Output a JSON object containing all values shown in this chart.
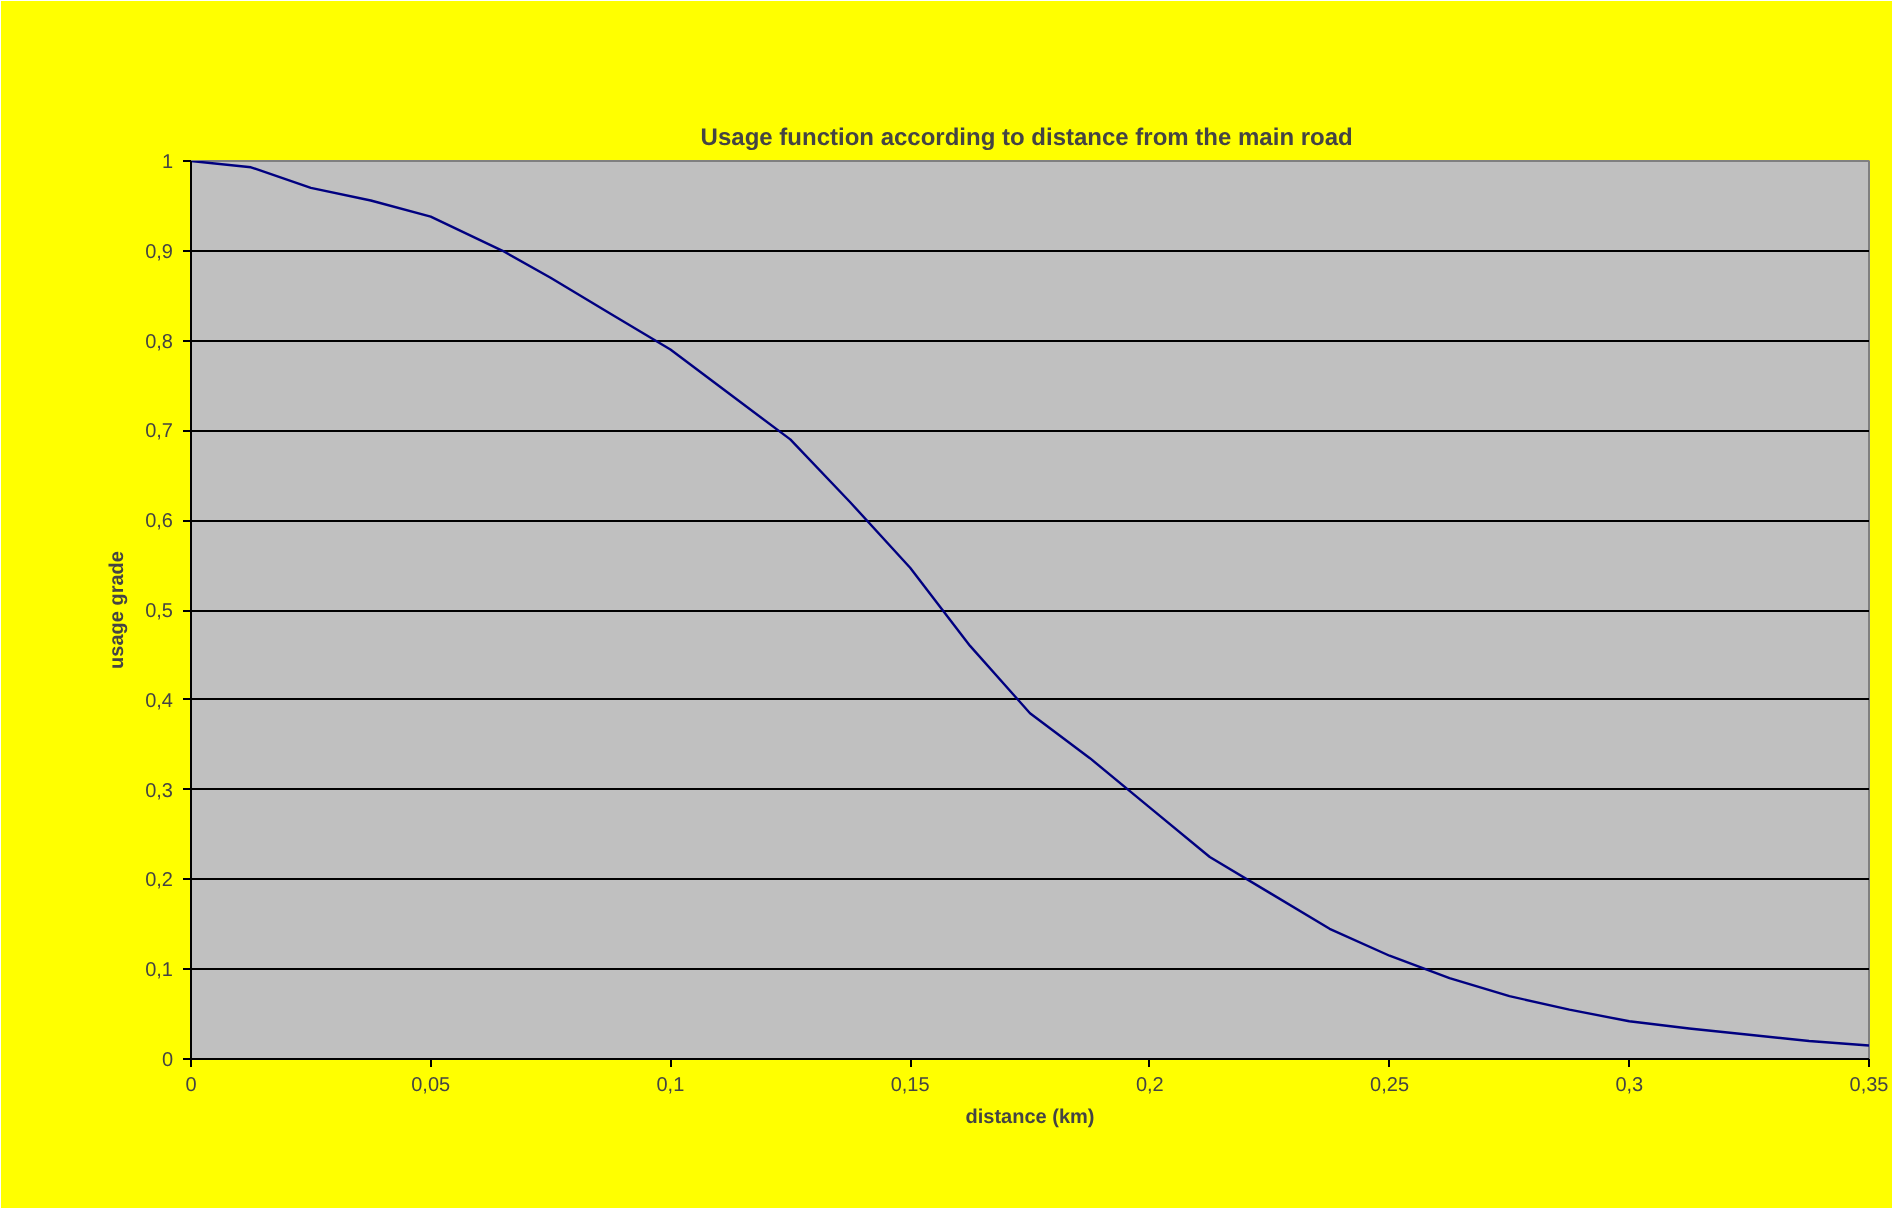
{
  "chart_data": {
    "type": "line",
    "title": "Usage function according to distance from the  main road",
    "xlabel": "distance (km)",
    "ylabel": "usage grade",
    "x": [
      0,
      0.0125,
      0.025,
      0.0375,
      0.05,
      0.065,
      0.075,
      0.0875,
      0.1,
      0.1125,
      0.125,
      0.1375,
      0.15,
      0.1625,
      0.175,
      0.1875,
      0.2,
      0.2125,
      0.225,
      0.2375,
      0.25,
      0.2625,
      0.275,
      0.2875,
      0.3,
      0.3125,
      0.325,
      0.3375,
      0.35
    ],
    "series": [
      {
        "color": "#000080",
        "values": [
          1.0,
          0.993,
          0.97,
          0.956,
          0.938,
          0.9,
          0.87,
          0.83,
          0.79,
          0.74,
          0.69,
          0.62,
          0.547,
          0.46,
          0.385,
          0.335,
          0.28,
          0.225,
          0.185,
          0.145,
          0.115,
          0.09,
          0.07,
          0.055,
          0.042,
          0.034,
          0.027,
          0.02,
          0.015
        ]
      }
    ],
    "xlim": [
      0,
      0.35
    ],
    "ylim": [
      0,
      1
    ],
    "xticks": [
      0,
      {
        "value": 0.05,
        "label": "0,05"
      },
      {
        "value": 0.1,
        "label": "0,1"
      },
      {
        "value": 0.15,
        "label": "0,15"
      },
      {
        "value": 0.2,
        "label": "0,2"
      },
      {
        "value": 0.25,
        "label": "0,25"
      },
      {
        "value": 0.3,
        "label": "0,3"
      },
      {
        "value": 0.35,
        "label": "0,35"
      }
    ],
    "yticks": [
      0,
      {
        "value": 0.1,
        "label": "0,1"
      },
      {
        "value": 0.2,
        "label": "0,2"
      },
      {
        "value": 0.3,
        "label": "0,3"
      },
      {
        "value": 0.4,
        "label": "0,4"
      },
      {
        "value": 0.5,
        "label": "0,5"
      },
      {
        "value": 0.6,
        "label": "0,6"
      },
      {
        "value": 0.7,
        "label": "0,7"
      },
      {
        "value": 0.8,
        "label": "0,8"
      },
      {
        "value": 0.9,
        "label": "0,9"
      },
      1
    ],
    "grid": "y",
    "marker": "none",
    "line_style": "solid"
  }
}
